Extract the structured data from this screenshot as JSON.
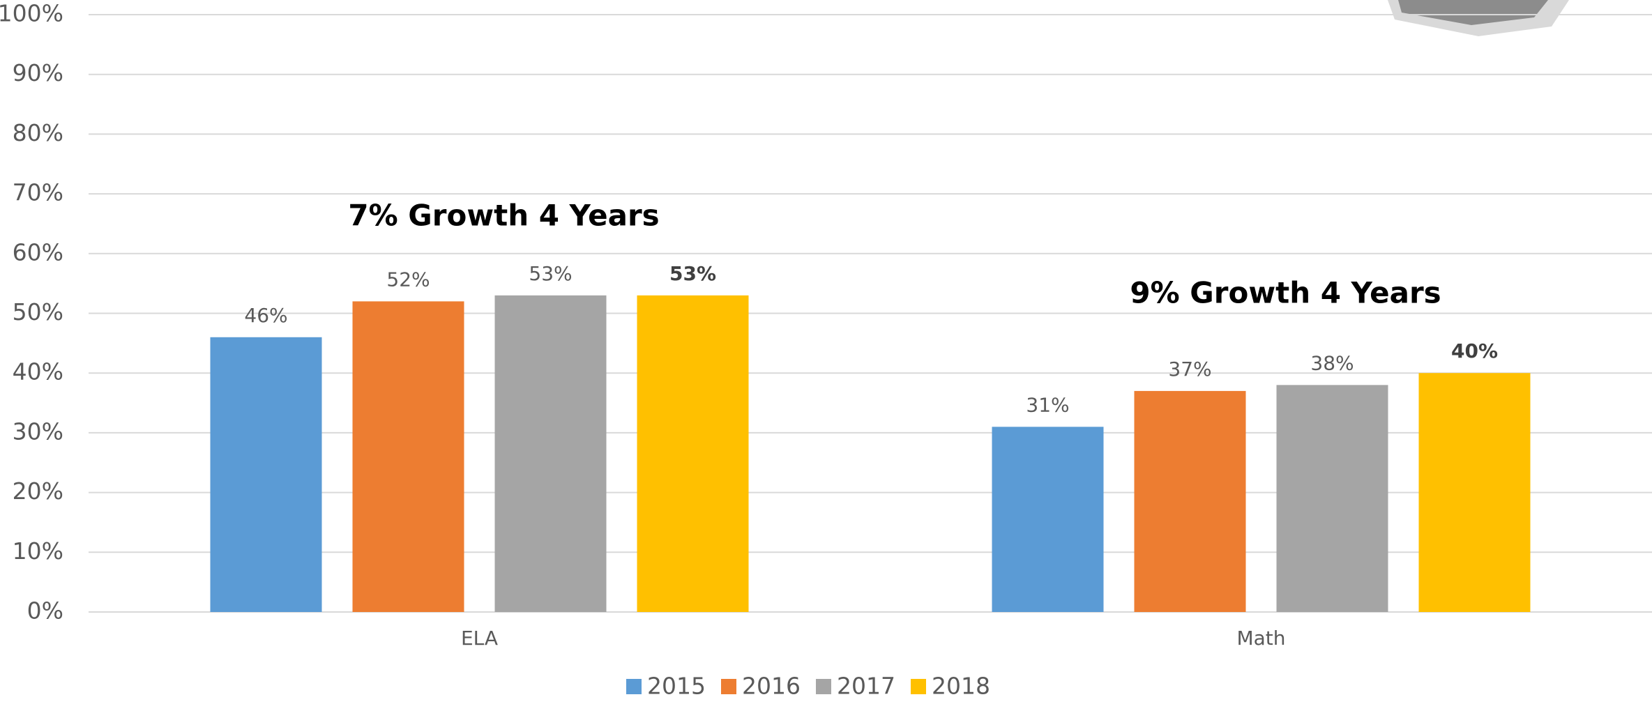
{
  "chart_data": {
    "type": "bar",
    "categories": [
      "ELA",
      "Math"
    ],
    "series": [
      {
        "name": "2015",
        "color": "#5b9bd5",
        "values": [
          46,
          31
        ],
        "value_labels": [
          "46%",
          "31%"
        ]
      },
      {
        "name": "2016",
        "color": "#ed7d31",
        "values": [
          52,
          37
        ],
        "value_labels": [
          "52%",
          "37%"
        ]
      },
      {
        "name": "2017",
        "color": "#a5a5a5",
        "values": [
          53,
          38
        ],
        "value_labels": [
          "53%",
          "38%"
        ]
      },
      {
        "name": "2018",
        "color": "#ffc000",
        "values": [
          53,
          40
        ],
        "value_labels": [
          "53%",
          "40%"
        ]
      }
    ],
    "annotations": [
      "7% Growth 4 Years",
      "9% Growth 4 Years"
    ],
    "ylim": [
      0,
      100
    ],
    "yticks": [
      {
        "value": 0,
        "label": "0%"
      },
      {
        "value": 10,
        "label": "10%"
      },
      {
        "value": 20,
        "label": "20%"
      },
      {
        "value": 30,
        "label": "30%"
      },
      {
        "value": 40,
        "label": "40%"
      },
      {
        "value": 50,
        "label": "50%"
      },
      {
        "value": 60,
        "label": "60%"
      },
      {
        "value": 70,
        "label": "70%"
      },
      {
        "value": 80,
        "label": "80%"
      },
      {
        "value": 90,
        "label": "90%"
      },
      {
        "value": 100,
        "label": "100%"
      }
    ],
    "grid": true,
    "legend": "bottom"
  }
}
